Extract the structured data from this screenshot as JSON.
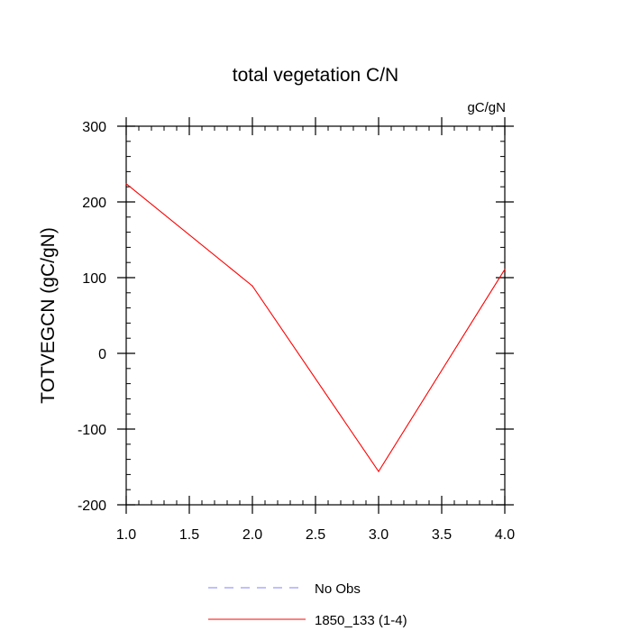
{
  "chart_data": {
    "type": "line",
    "title": "total vegetation C/N",
    "units_label": "gC/gN",
    "ylabel": "TOTVEGCN  (gC/gN)",
    "xlabel": "",
    "xlim": [
      1.0,
      4.0
    ],
    "ylim": [
      -200,
      300
    ],
    "x_ticks": [
      1.0,
      1.5,
      2.0,
      2.5,
      3.0,
      3.5,
      4.0
    ],
    "x_tick_labels": [
      "1.0",
      "1.5",
      "2.0",
      "2.5",
      "3.0",
      "3.5",
      "4.0"
    ],
    "y_ticks": [
      -200,
      -100,
      0,
      100,
      200,
      300
    ],
    "y_tick_labels": [
      "-200",
      "-100",
      "0",
      "100",
      "200",
      "300"
    ],
    "x_minor_step": 0.1,
    "y_minor_step": 20,
    "grid": false,
    "legend_position": "bottom-center",
    "series": [
      {
        "name": "1850_133 (1-4)",
        "color": "#ff0000",
        "style": "solid",
        "x": [
          1.0,
          2.0,
          3.0,
          4.0
        ],
        "values": [
          224,
          89,
          -156,
          111
        ]
      }
    ],
    "legend": [
      {
        "label": "No Obs",
        "color": "#8080ff",
        "style": "dashed"
      },
      {
        "label": "1850_133 (1-4)",
        "color": "#ff0000",
        "style": "solid"
      }
    ]
  }
}
